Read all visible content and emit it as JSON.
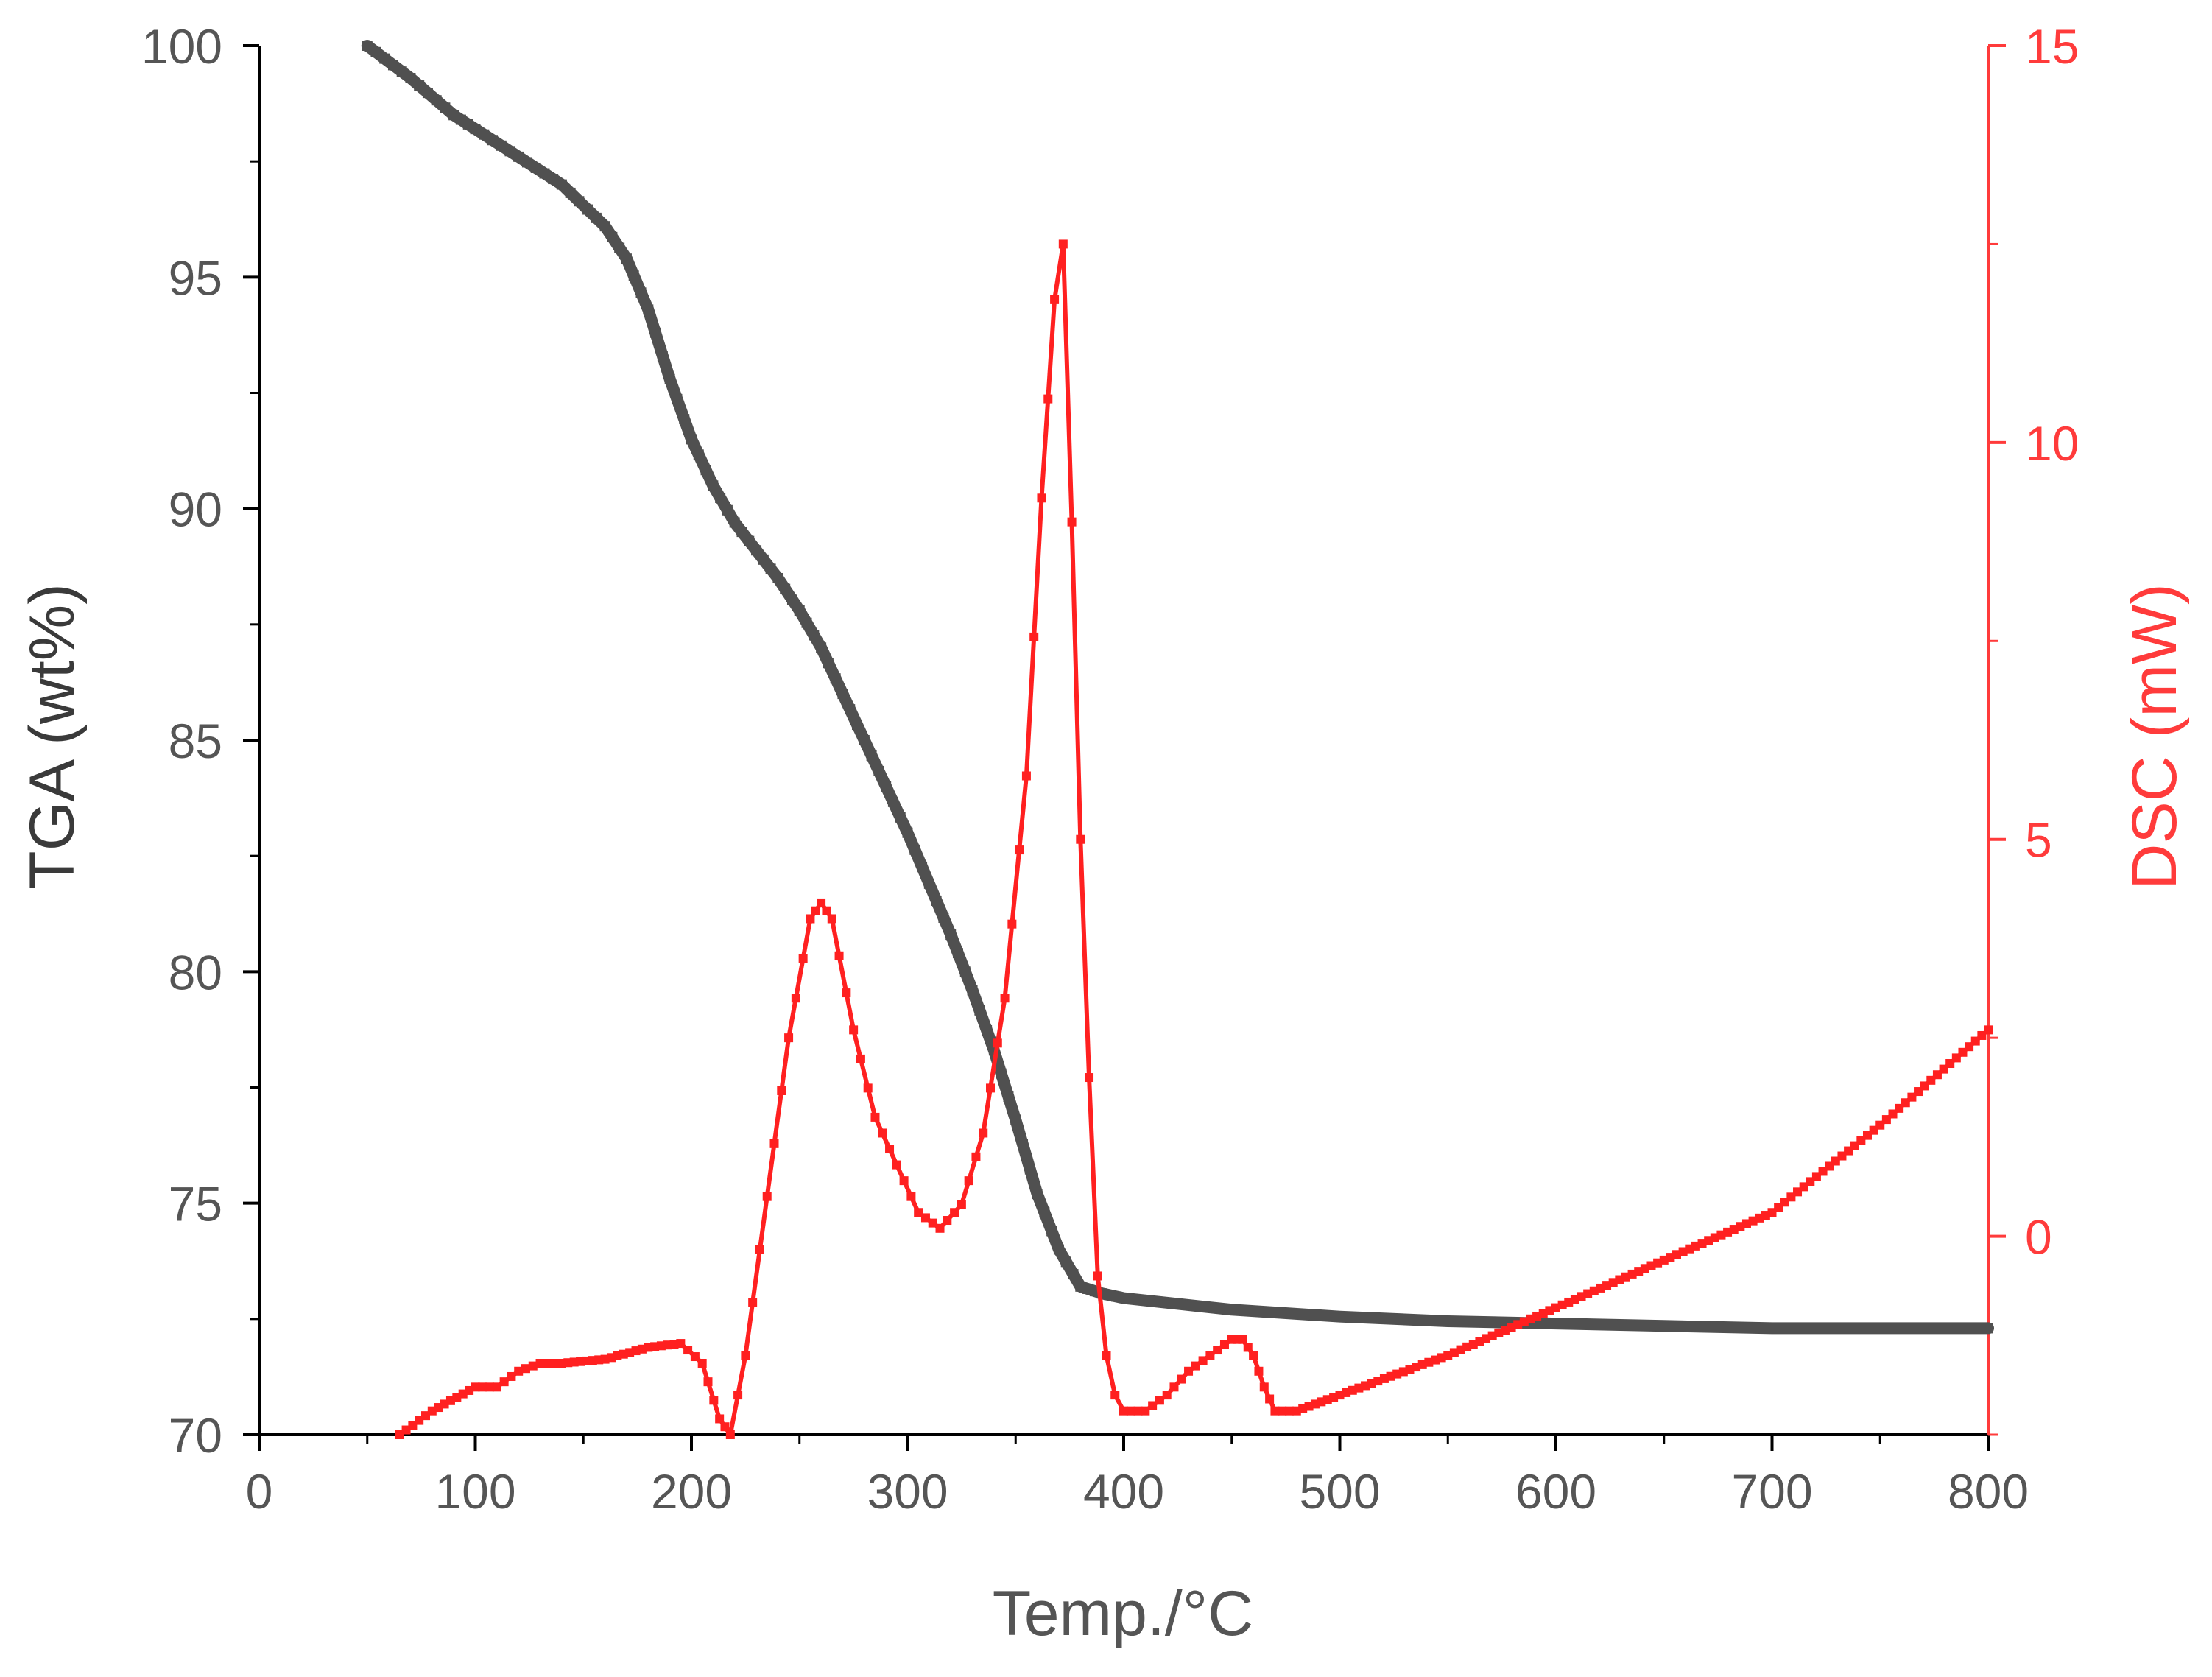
{
  "chart_data": {
    "type": "line",
    "xlabel": "Temp./°C",
    "ylabel": "TGA (wt%)",
    "y2label": "DSC (mW)",
    "xlim": [
      0,
      800
    ],
    "ylim": [
      70,
      100
    ],
    "y2lim": [
      -2.5,
      15
    ],
    "xticks": [
      0,
      100,
      200,
      300,
      400,
      500,
      600,
      700,
      800
    ],
    "yticks": [
      70,
      75,
      80,
      85,
      90,
      95,
      100
    ],
    "y2ticks": [
      0,
      5,
      10,
      15
    ],
    "y2ticks_minor": [
      -2.5,
      2.5,
      7.5,
      12.5
    ],
    "grid": false,
    "colors": {
      "tga": "#505050",
      "dsc": "#ff2020",
      "right_axis": "#ff3b3b",
      "axis": "#000000"
    },
    "series": [
      {
        "axis": "left",
        "x": [
          50,
          70,
          90,
          100,
          120,
          140,
          160,
          170,
          180,
          190,
          200,
          210,
          220,
          230,
          240,
          250,
          260,
          270,
          280,
          290,
          300,
          310,
          320,
          330,
          340,
          350,
          360,
          370,
          380,
          390,
          400,
          450,
          500,
          550,
          600,
          650,
          700,
          750,
          800
        ],
        "y": [
          100,
          99.3,
          98.5,
          98.2,
          97.6,
          97.0,
          96.1,
          95.4,
          94.3,
          92.8,
          91.5,
          90.5,
          89.7,
          89.1,
          88.5,
          87.8,
          87.0,
          86.0,
          85.0,
          84.0,
          83.0,
          81.9,
          80.8,
          79.6,
          78.3,
          76.8,
          75.2,
          74.0,
          73.2,
          73.05,
          72.95,
          72.7,
          72.55,
          72.45,
          72.4,
          72.35,
          72.3,
          72.3,
          72.3
        ]
      },
      {
        "axis": "right",
        "x": [
          65,
          80,
          100,
          110,
          120,
          130,
          140,
          160,
          180,
          195,
          205,
          213,
          218,
          225,
          235,
          245,
          255,
          260,
          265,
          275,
          285,
          295,
          305,
          315,
          325,
          335,
          345,
          355,
          362,
          368,
          372,
          376,
          380,
          384,
          388,
          392,
          396,
          400,
          410,
          420,
          430,
          440,
          450,
          455,
          460,
          465,
          470,
          480,
          500,
          550,
          600,
          650,
          700,
          750,
          800
        ],
        "y": [
          -2.5,
          -2.2,
          -1.9,
          -1.9,
          -1.7,
          -1.6,
          -1.6,
          -1.55,
          -1.4,
          -1.35,
          -1.6,
          -2.3,
          -2.5,
          -1.5,
          0.5,
          2.5,
          4.0,
          4.2,
          4.0,
          2.6,
          1.5,
          0.9,
          0.3,
          0.1,
          0.4,
          1.3,
          3.0,
          5.8,
          9.3,
          11.8,
          12.5,
          9.0,
          5.0,
          2.0,
          -0.5,
          -1.5,
          -2.0,
          -2.2,
          -2.2,
          -2.0,
          -1.7,
          -1.5,
          -1.3,
          -1.3,
          -1.5,
          -1.9,
          -2.2,
          -2.2,
          -2.0,
          -1.5,
          -0.9,
          -0.3,
          0.3,
          1.4,
          2.6
        ]
      }
    ]
  }
}
